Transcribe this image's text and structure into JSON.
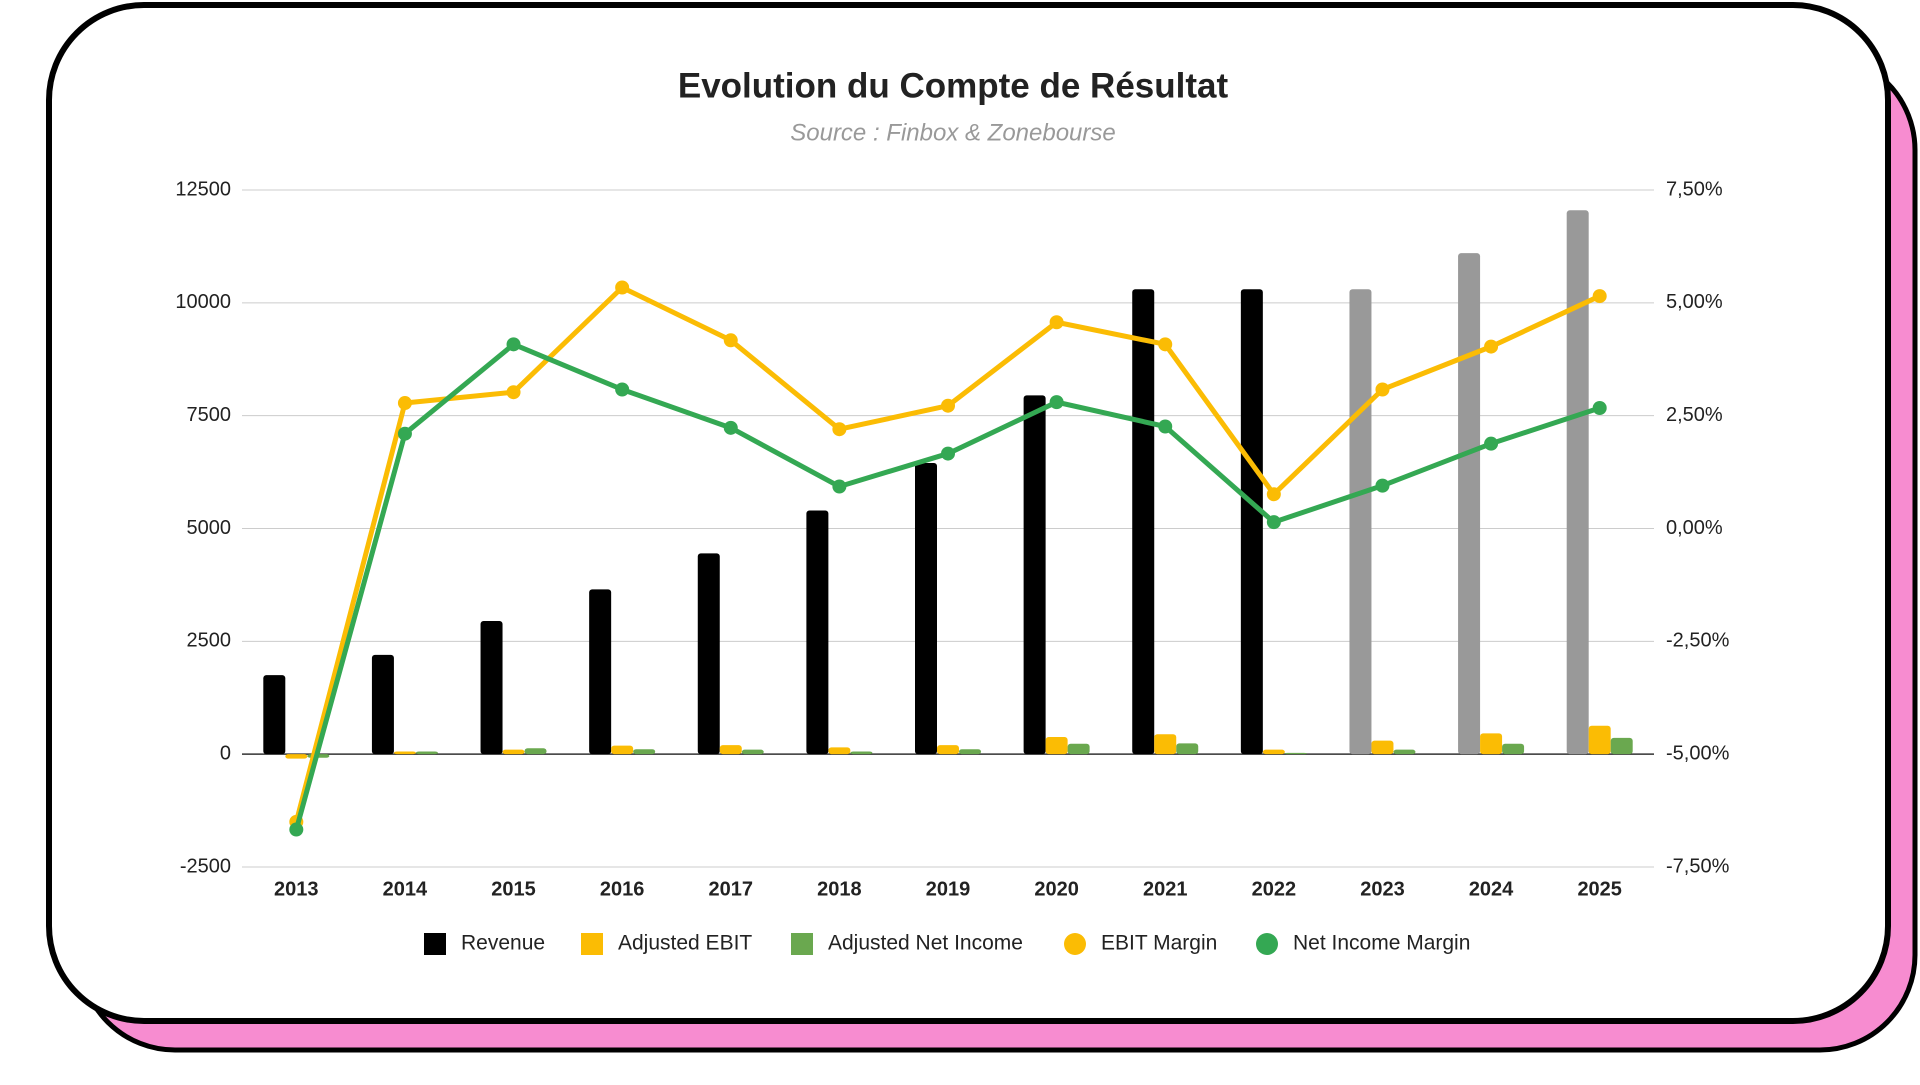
{
  "chart_data": {
    "type": "combo",
    "title": "Evolution du Compte de Résultat",
    "subtitle": "Source : Finbox & Zonebourse",
    "categories": [
      "2013",
      "2014",
      "2015",
      "2016",
      "2017",
      "2018",
      "2019",
      "2020",
      "2021",
      "2022",
      "2023",
      "2024",
      "2025"
    ],
    "ylim": [
      -2500,
      12500
    ],
    "yticks": [
      -2500,
      0,
      2500,
      5000,
      7500,
      10000,
      12500
    ],
    "y2lim": [
      -7.5,
      7.5
    ],
    "y2ticks": [
      {
        "value": -7.5,
        "label": "-7,50%"
      },
      {
        "value": -5,
        "label": "-5,00%"
      },
      {
        "value": -2.5,
        "label": "-2,50%"
      },
      {
        "value": 0,
        "label": "0,00%"
      },
      {
        "value": 2.5,
        "label": "2,50%"
      },
      {
        "value": 5,
        "label": "5,00%"
      },
      {
        "value": 7.5,
        "label": "7,50%"
      }
    ],
    "grid": true,
    "legend": "bottom",
    "series": [
      {
        "name": "Revenue",
        "type": "bar",
        "color": "#000000",
        "point_colors": [
          "#000000",
          "#000000",
          "#000000",
          "#000000",
          "#000000",
          "#000000",
          "#000000",
          "#000000",
          "#000000",
          "#000000",
          "#999999",
          "#999999",
          "#999999"
        ],
        "values": [
          1750,
          2200,
          2950,
          3650,
          4450,
          5400,
          6450,
          7950,
          10300,
          10300,
          10300,
          11100,
          12050
        ]
      },
      {
        "name": "Adjusted EBIT",
        "type": "bar",
        "color": "#fbbc04",
        "values": [
          -100,
          60,
          100,
          190,
          200,
          150,
          200,
          380,
          440,
          100,
          300,
          460,
          630
        ]
      },
      {
        "name": "Adjusted Net Income",
        "type": "bar",
        "color": "#6aa84f",
        "values": [
          -80,
          60,
          130,
          110,
          100,
          60,
          110,
          230,
          240,
          30,
          100,
          230,
          360
        ]
      },
      {
        "name": "EBIT Margin",
        "type": "line",
        "axis": "y2",
        "color": "#fbbc04",
        "values": [
          -6.5,
          2.78,
          3.02,
          5.34,
          4.17,
          2.2,
          2.72,
          4.57,
          4.08,
          0.76,
          3.08,
          4.03,
          5.15
        ]
      },
      {
        "name": "Net Income Margin",
        "type": "line",
        "axis": "y2",
        "color": "#34a853",
        "values": [
          -6.67,
          2.1,
          4.08,
          3.08,
          2.23,
          0.93,
          1.66,
          2.8,
          2.26,
          0.14,
          0.95,
          1.88,
          2.67
        ]
      }
    ]
  }
}
